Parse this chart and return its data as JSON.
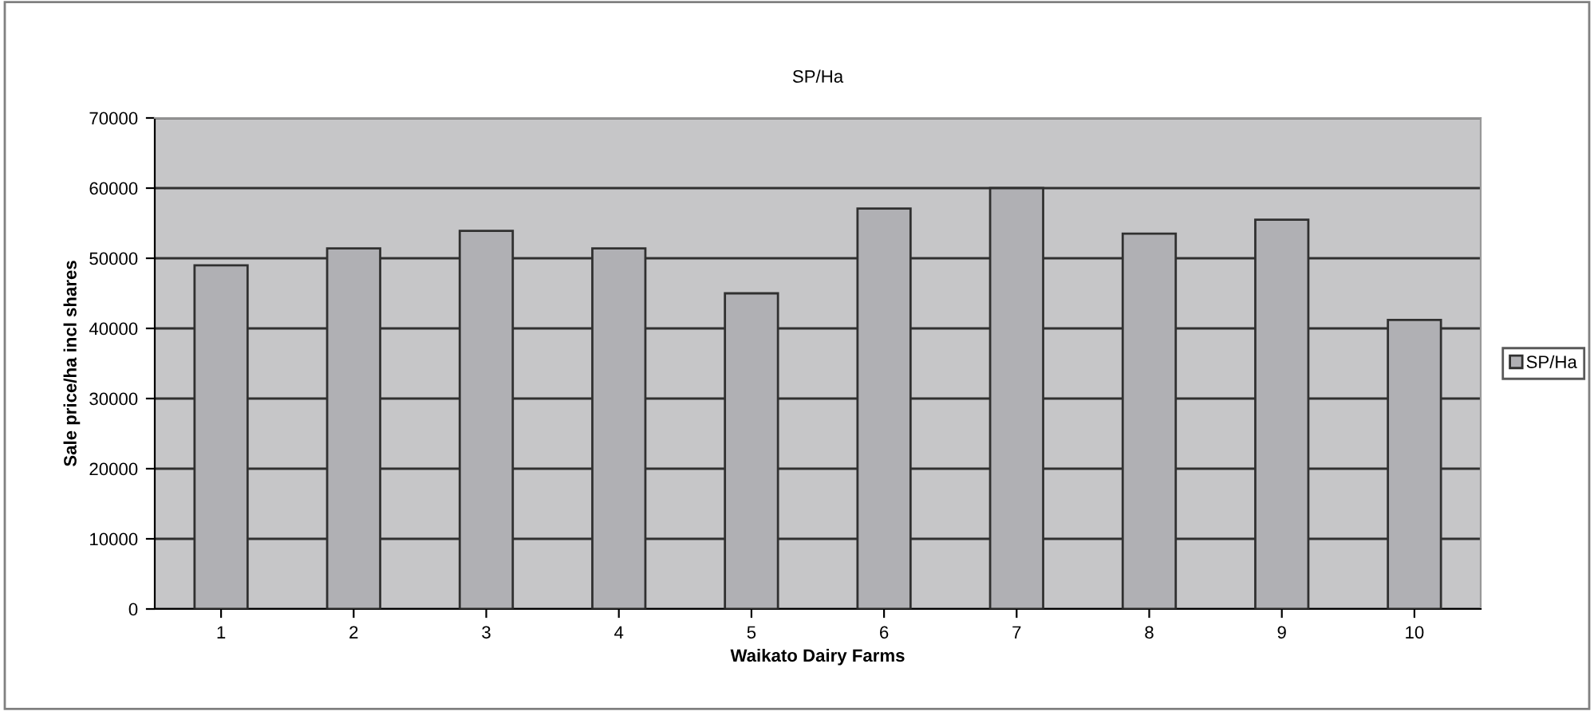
{
  "chart_data": {
    "type": "bar",
    "title": "SP/Ha",
    "xlabel": "Waikato Dairy Farms",
    "ylabel": "Sale price/ha incl shares",
    "categories": [
      "1",
      "2",
      "3",
      "4",
      "5",
      "6",
      "7",
      "8",
      "9",
      "10"
    ],
    "series": [
      {
        "name": "SP/Ha",
        "color": "#b0b0b4",
        "values": [
          49000,
          51400,
          53900,
          51400,
          45000,
          57100,
          60000,
          53500,
          55500,
          41200
        ]
      }
    ],
    "ylim": [
      0,
      70000
    ],
    "yticks": [
      0,
      10000,
      20000,
      30000,
      40000,
      50000,
      60000,
      70000
    ],
    "grid": "y",
    "legend": "right"
  }
}
